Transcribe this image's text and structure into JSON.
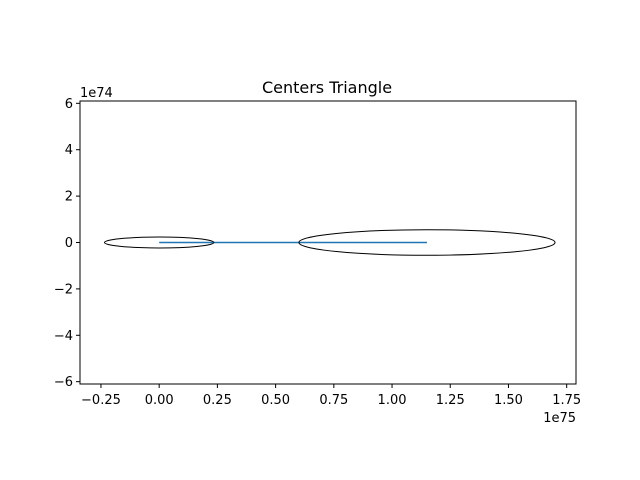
{
  "chart_data": {
    "type": "line",
    "title": "Centers Triangle",
    "xlabel": "",
    "ylabel": "",
    "x_offset_label": "1e75",
    "y_offset_label": "1e74",
    "xlim": [
      -0.34,
      1.79
    ],
    "ylim": [
      -6.1,
      6.1
    ],
    "x_ticks": [
      -0.25,
      0.0,
      0.25,
      0.5,
      0.75,
      1.0,
      1.25,
      1.5,
      1.75
    ],
    "x_tick_labels": [
      "−0.25",
      "0.00",
      "0.25",
      "0.50",
      "0.75",
      "1.00",
      "1.25",
      "1.50",
      "1.75"
    ],
    "y_ticks": [
      -6,
      -4,
      -2,
      0,
      2,
      4,
      6
    ],
    "y_tick_labels": [
      "−6",
      "−4",
      "−2",
      "0",
      "2",
      "4",
      "6"
    ],
    "grid": false,
    "series": [
      {
        "x": [
          0.0,
          1.15
        ],
        "y": [
          0.0,
          0.0
        ],
        "color": "#1f77b4"
      }
    ],
    "circles": [
      {
        "cx": 0.0,
        "cy": 0.0,
        "r": 0.235,
        "color": "#000000"
      },
      {
        "cx": 1.15,
        "cy": 0.0,
        "r": 0.55,
        "color": "#000000"
      }
    ]
  }
}
